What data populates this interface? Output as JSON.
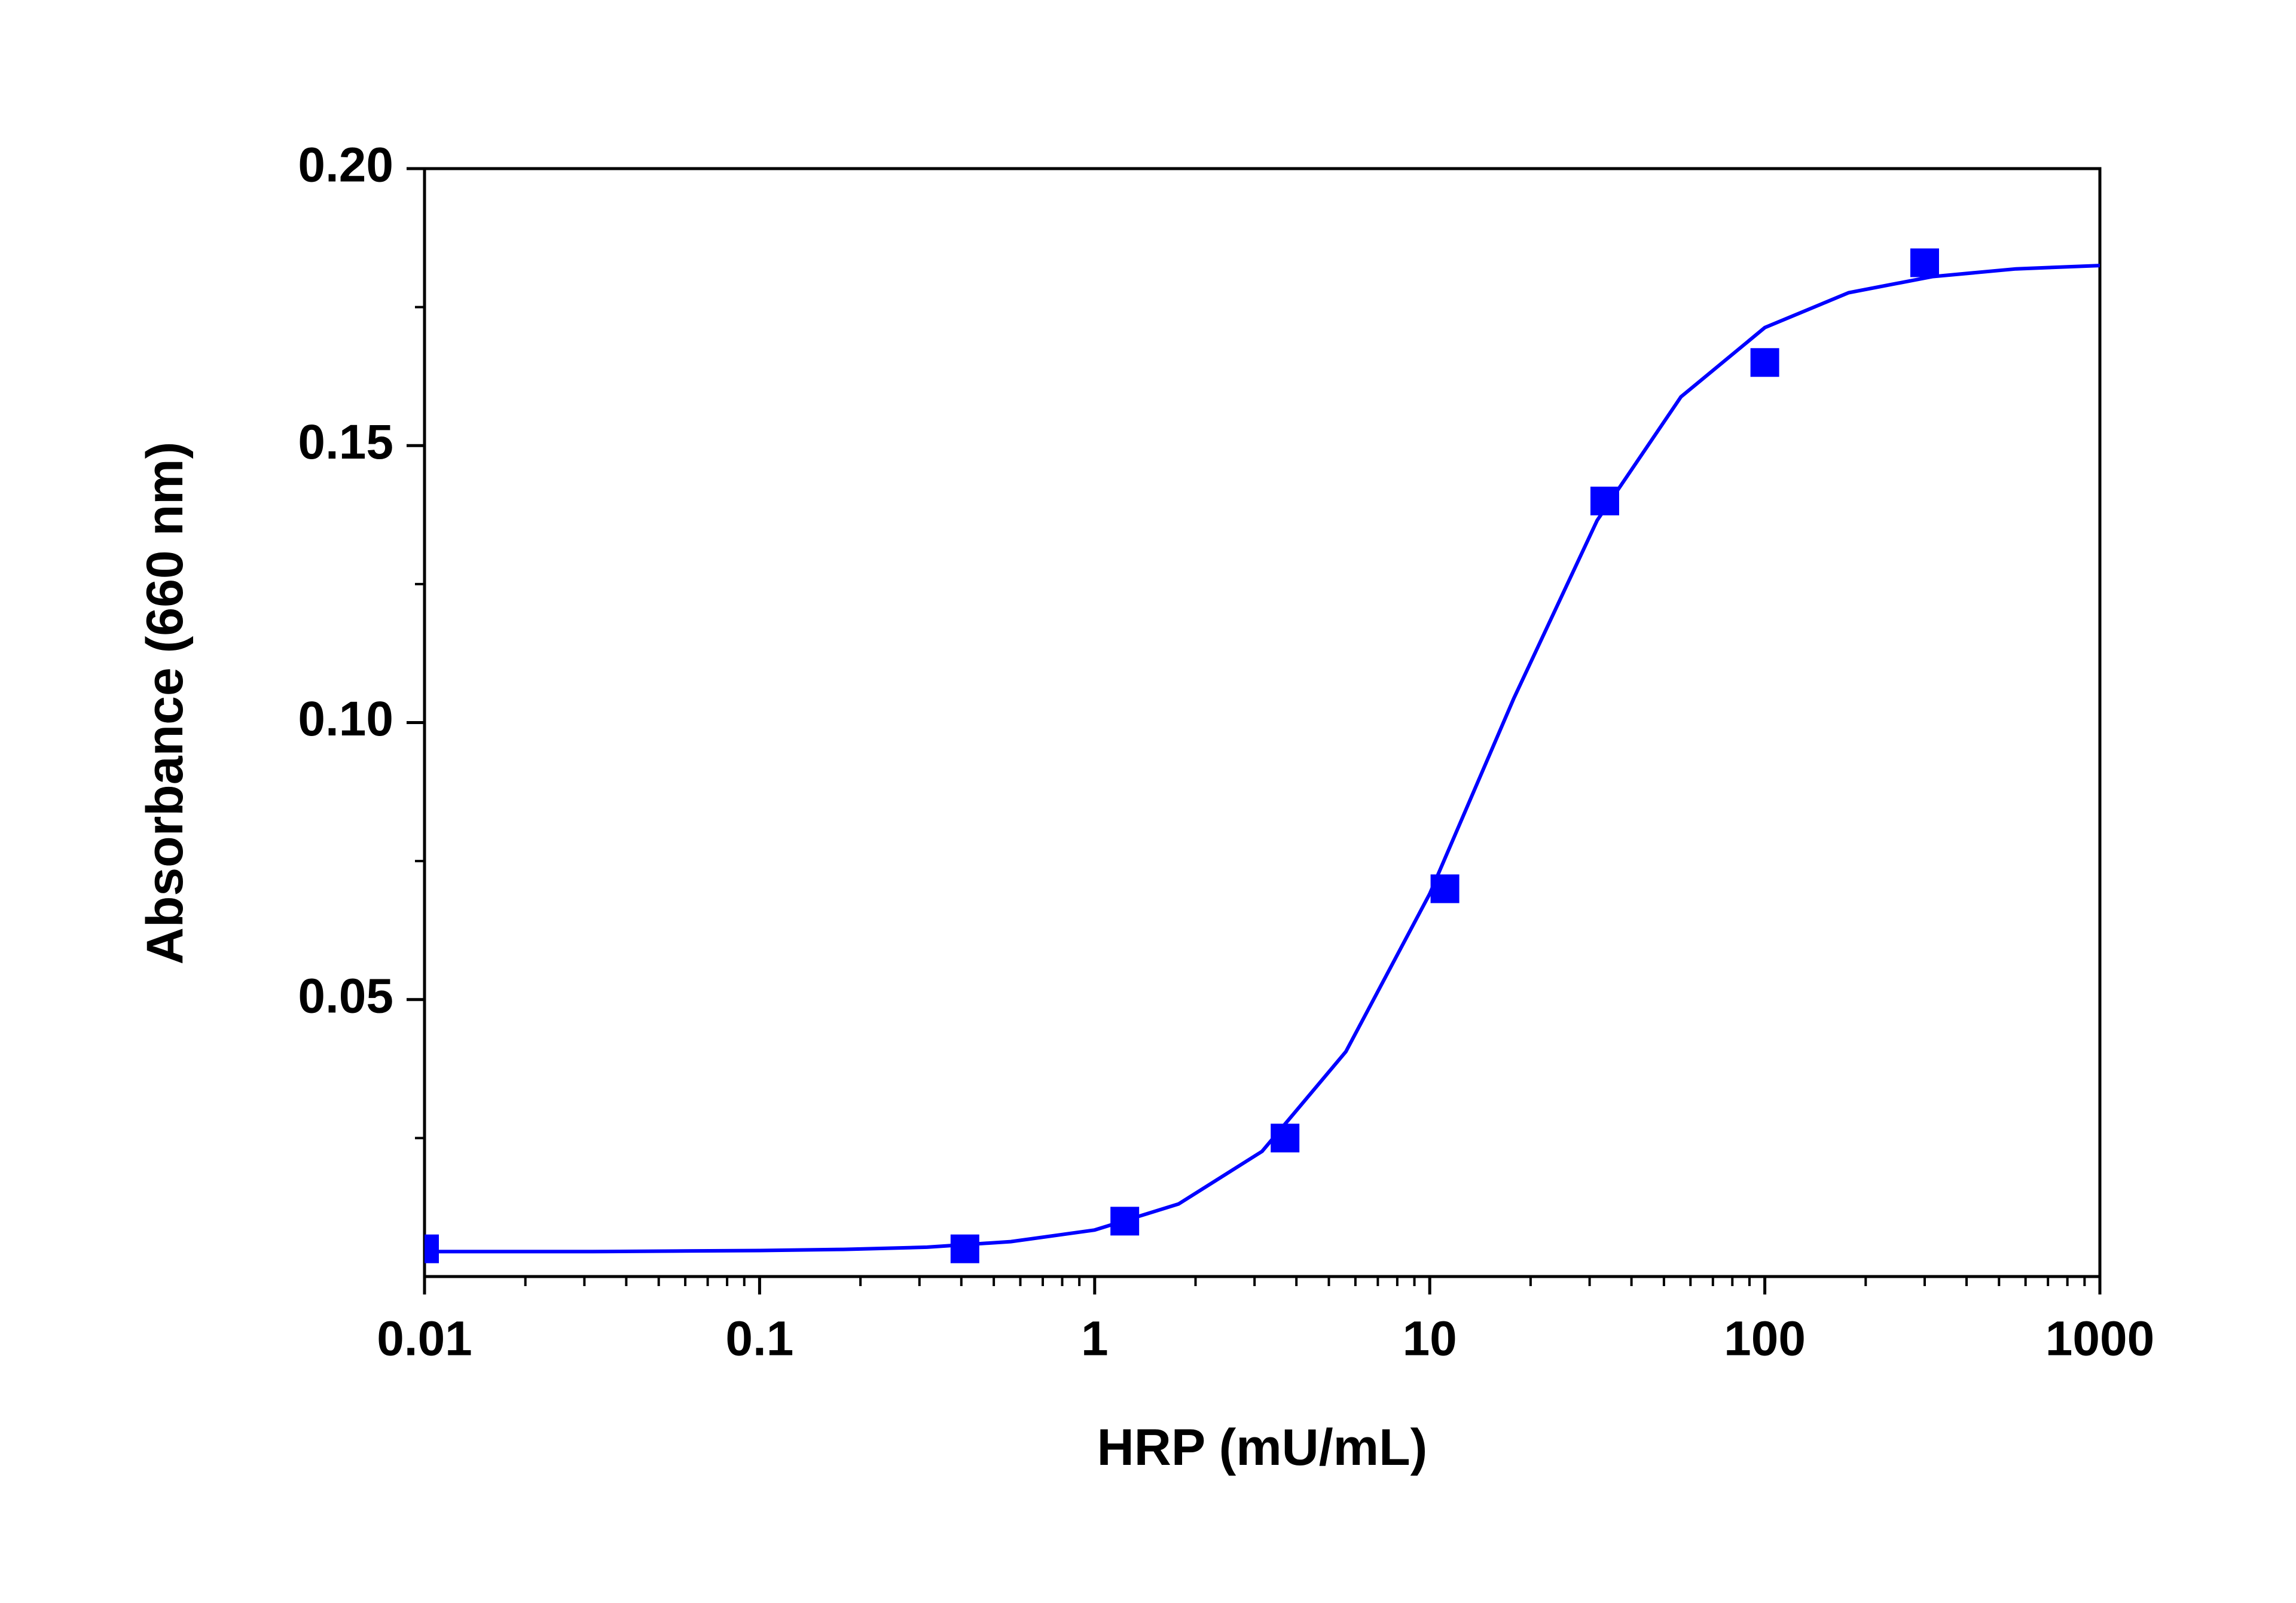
{
  "chart_data": {
    "type": "scatter",
    "xlabel": "HRP (mU/mL)",
    "ylabel": "Absorbance (660 nm)",
    "xscale": "log",
    "xlim": [
      0.01,
      1000
    ],
    "xticks": [
      0.01,
      0.1,
      1,
      10,
      100,
      1000
    ],
    "xminorticks": [
      0.02,
      0.03,
      0.04,
      0.05,
      0.06,
      0.07,
      0.08,
      0.09,
      0.2,
      0.3,
      0.4,
      0.5,
      0.6,
      0.7,
      0.8,
      0.9,
      2,
      3,
      4,
      5,
      6,
      7,
      8,
      9,
      20,
      30,
      40,
      50,
      60,
      70,
      80,
      90,
      200,
      300,
      400,
      500,
      600,
      700,
      800,
      900
    ],
    "ylim": [
      0,
      0.2
    ],
    "yticks": [
      0.05,
      {
        "value": 0.1,
        "label": "0.10"
      },
      0.15,
      {
        "value": 0.2,
        "label": "0.20"
      }
    ],
    "yminorticks": [
      0.025,
      0.075,
      0.125,
      0.175
    ],
    "series": [
      {
        "type": "scatter",
        "color": "#0000ff",
        "x": [
          0.01,
          0.41,
          1.23,
          3.7,
          11.1,
          33.3,
          100,
          300
        ],
        "values": [
          0.005,
          0.005,
          0.01,
          0.025,
          0.07,
          0.14,
          0.165,
          0.183
        ]
      },
      {
        "type": "line",
        "color": "#0000ff",
        "x": [
          0.01,
          0.0178,
          0.0316,
          0.0562,
          0.1,
          0.178,
          0.316,
          0.562,
          1,
          1.78,
          3.16,
          5.62,
          10,
          17.8,
          31.6,
          56.2,
          100,
          178,
          316,
          562,
          1000
        ],
        "values": [
          0.0045,
          0.0045,
          0.0045,
          0.0046,
          0.0047,
          0.0049,
          0.0053,
          0.0063,
          0.0084,
          0.0131,
          0.0226,
          0.0406,
          0.0691,
          0.1043,
          0.1365,
          0.1588,
          0.1713,
          0.1776,
          0.1805,
          0.1819,
          0.1825
        ]
      }
    ]
  }
}
